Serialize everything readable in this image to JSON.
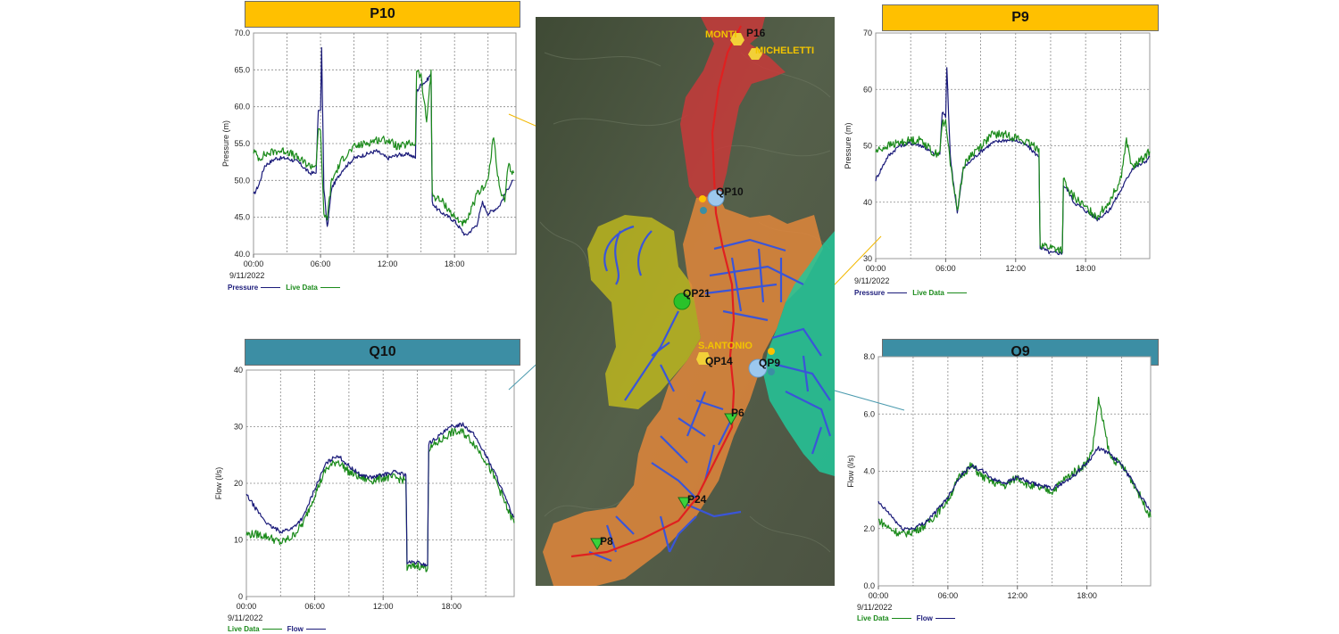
{
  "colors": {
    "pressure": "#1b1b7a",
    "flow": "#1b1b7a",
    "live": "#1a8a1a",
    "p_title_bg": "#ffc000",
    "q_title_bg": "#3c8ea4",
    "callout_p": "#f2b800",
    "callout_q": "#4a9aae"
  },
  "chart_data": [
    {
      "id": "p10",
      "type": "line",
      "title": "P10",
      "xlabel": "",
      "ylabel": "Pressure (m)",
      "ylim": [
        40,
        70
      ],
      "yticks": [
        "40.0",
        "45.0",
        "50.0",
        "55.0",
        "60.0",
        "65.0",
        "70.0"
      ],
      "xlim": [
        0,
        23.5
      ],
      "xticks": [
        "00:00",
        "06:00",
        "12:00",
        "18:00"
      ],
      "date": "9/11/2022",
      "grid": true,
      "series": [
        {
          "name": "Pressure",
          "color_key": "pressure",
          "x": [
            0,
            0.5,
            1,
            2,
            3,
            4,
            5,
            5.6,
            5.8,
            6,
            6.1,
            6.3,
            6.6,
            7,
            8,
            9,
            10,
            11,
            12,
            13,
            14,
            14.5,
            14.6,
            15,
            15.5,
            15.9,
            16,
            16.5,
            17,
            18,
            19,
            20,
            20.5,
            21,
            22,
            22.8,
            23.3
          ],
          "y": [
            48,
            49.5,
            52,
            53,
            53,
            52.5,
            51,
            51,
            59.5,
            59.5,
            68,
            49,
            43.5,
            49,
            51.5,
            53,
            53.5,
            54,
            53,
            53.5,
            53.5,
            53,
            62,
            63,
            63.5,
            64.5,
            47,
            46,
            45.5,
            44.5,
            42.5,
            44,
            47,
            45.5,
            46.5,
            49,
            50
          ]
        },
        {
          "name": "Live Data",
          "color_key": "live",
          "x": [
            0,
            0.5,
            1,
            2,
            3,
            4,
            5,
            5.6,
            5.8,
            6,
            6.3,
            6.6,
            7,
            8,
            9,
            10,
            11,
            12,
            13,
            14,
            14.5,
            14.6,
            15,
            15.5,
            15.9,
            16,
            16.5,
            17,
            18,
            19,
            20,
            20.5,
            21,
            21.5,
            22,
            22.5,
            22.8,
            23.3
          ],
          "y": [
            54,
            53,
            53.5,
            54,
            54,
            53,
            52,
            52,
            57,
            57,
            45,
            45,
            50,
            53,
            54.5,
            55,
            55.5,
            55.5,
            54.5,
            55,
            55,
            65,
            64,
            58,
            65,
            48,
            47.5,
            47,
            45,
            44,
            48,
            49,
            50,
            56,
            49,
            47,
            52,
            51
          ]
        }
      ]
    },
    {
      "id": "p9",
      "type": "line",
      "title": "P9",
      "xlabel": "",
      "ylabel": "Pressure (m)",
      "ylim": [
        30,
        70
      ],
      "yticks": [
        "30",
        "40",
        "50",
        "60",
        "70"
      ],
      "xlim": [
        0,
        23.5
      ],
      "xticks": [
        "00:00",
        "06:00",
        "12:00",
        "18:00"
      ],
      "date": "9/11/2022",
      "grid": true,
      "series": [
        {
          "name": "Pressure",
          "color_key": "pressure",
          "x": [
            0,
            1,
            2,
            3,
            4,
            5,
            5.5,
            5.7,
            6,
            6.1,
            6.4,
            7,
            7.5,
            8,
            9,
            10,
            11,
            12,
            13,
            14,
            14.1,
            15,
            16,
            16.1,
            16.5,
            17,
            18,
            19,
            20,
            21,
            22,
            23,
            23.5
          ],
          "y": [
            44,
            48,
            50,
            50.5,
            50,
            48.5,
            48.5,
            56,
            55,
            64,
            48,
            38,
            46,
            47,
            49,
            50.5,
            51,
            51,
            50,
            48,
            32,
            31,
            31,
            43,
            42,
            40,
            38.5,
            37,
            38.5,
            42,
            46,
            47,
            48
          ]
        },
        {
          "name": "Live Data",
          "color_key": "live",
          "x": [
            0,
            1,
            2,
            3,
            4,
            5,
            5.5,
            5.7,
            6,
            6.4,
            7,
            7.5,
            8,
            9,
            10,
            11,
            12,
            13,
            14,
            14.1,
            15,
            16,
            16.1,
            16.5,
            17,
            18,
            19,
            20,
            21,
            21.5,
            22,
            23,
            23.5
          ],
          "y": [
            49,
            50,
            50.5,
            51,
            51,
            48.5,
            49,
            54,
            54,
            47,
            38.5,
            46,
            48,
            50,
            52,
            52,
            51.5,
            50.5,
            49.5,
            32.5,
            32,
            31.5,
            44,
            42,
            41,
            39,
            37.5,
            40,
            44,
            51,
            46,
            48,
            49
          ]
        }
      ]
    },
    {
      "id": "q10",
      "type": "line",
      "title": "Q10",
      "xlabel": "",
      "ylabel": "Flow (l/s)",
      "ylim": [
        0,
        40
      ],
      "yticks": [
        "0",
        "10",
        "20",
        "30",
        "40"
      ],
      "xlim": [
        0,
        23.5
      ],
      "xticks": [
        "00:00",
        "06:00",
        "12:00",
        "18:00"
      ],
      "date": "9/11/2022",
      "grid": true,
      "series": [
        {
          "name": "Live Data",
          "color_key": "live",
          "x": [
            0,
            1,
            2,
            3,
            4,
            5,
            6,
            7,
            8,
            9,
            10,
            11,
            12,
            13,
            14,
            14.1,
            15,
            15.9,
            16,
            17,
            18,
            19,
            20,
            21,
            22,
            23,
            23.5
          ],
          "y": [
            11,
            11,
            10.5,
            9.5,
            10.5,
            13,
            18,
            22.5,
            24,
            22,
            21,
            20.5,
            21,
            21,
            20.5,
            5,
            5.5,
            5,
            26,
            27.5,
            29,
            29,
            27,
            24,
            20,
            15,
            13
          ]
        },
        {
          "name": "Flow",
          "color_key": "flow",
          "x": [
            0,
            1,
            2,
            3,
            4,
            5,
            6,
            7,
            8,
            9,
            10,
            11,
            12,
            13,
            14,
            14.1,
            15,
            15.9,
            16,
            17,
            18,
            19,
            20,
            21,
            22,
            23,
            23.5
          ],
          "y": [
            18,
            15,
            12.5,
            11.5,
            12,
            14,
            19,
            23.5,
            25,
            23,
            21.5,
            21,
            21.5,
            22,
            21.5,
            6,
            6,
            5.5,
            27,
            28.5,
            30,
            30.5,
            28.5,
            25,
            21,
            16,
            14
          ]
        }
      ]
    },
    {
      "id": "q9",
      "type": "line",
      "title": "Q9",
      "xlabel": "",
      "ylabel": "Flow (l/s)",
      "ylim": [
        0,
        8
      ],
      "yticks": [
        "0.0",
        "2.0",
        "4.0",
        "6.0",
        "8.0"
      ],
      "xlim": [
        0,
        23.5
      ],
      "xticks": [
        "00:00",
        "06:00",
        "12:00",
        "18:00"
      ],
      "date": "9/11/2022",
      "grid": true,
      "series": [
        {
          "name": "Live Data",
          "color_key": "live",
          "x": [
            0,
            1,
            2,
            3,
            4,
            5,
            6,
            7,
            8,
            9,
            10,
            11,
            12,
            13,
            14,
            15,
            16,
            17,
            18,
            18.5,
            19,
            20,
            21,
            22,
            23,
            23.5
          ],
          "y": [
            2.3,
            2.0,
            1.8,
            1.9,
            2.1,
            2.5,
            3.0,
            3.8,
            4.2,
            3.8,
            3.6,
            3.5,
            3.8,
            3.5,
            3.4,
            3.3,
            3.7,
            4.0,
            4.3,
            4.8,
            6.5,
            4.5,
            4.2,
            3.6,
            2.8,
            2.4
          ]
        },
        {
          "name": "Flow",
          "color_key": "flow",
          "x": [
            0,
            1,
            2,
            3,
            4,
            5,
            6,
            7,
            8,
            9,
            10,
            11,
            12,
            13,
            14,
            15,
            16,
            17,
            18,
            19,
            20,
            21,
            22,
            23,
            23.5
          ],
          "y": [
            2.9,
            2.5,
            2.0,
            2.0,
            2.2,
            2.6,
            3.1,
            3.8,
            4.2,
            4.0,
            3.7,
            3.6,
            3.8,
            3.6,
            3.5,
            3.4,
            3.6,
            3.9,
            4.3,
            4.8,
            4.6,
            4.2,
            3.6,
            2.9,
            2.6
          ]
        }
      ]
    }
  ],
  "map": {
    "stations": [
      {
        "id": "monti",
        "label": "MONTI",
        "kind": "tank"
      },
      {
        "id": "p16",
        "label": "P16",
        "kind": "pressure"
      },
      {
        "id": "micheletti",
        "label": "MICHELETTI",
        "kind": "tank"
      },
      {
        "id": "qp10",
        "label": "QP10",
        "kind": "flow-pressure"
      },
      {
        "id": "qp21",
        "label": "QP21",
        "kind": "flow-pressure"
      },
      {
        "id": "s_antonio",
        "label": "S.ANTONIO",
        "kind": "tank"
      },
      {
        "id": "qp14",
        "label": "QP14",
        "kind": "flow-pressure"
      },
      {
        "id": "qp9",
        "label": "QP9",
        "kind": "flow-pressure"
      },
      {
        "id": "p6",
        "label": "P6",
        "kind": "pressure"
      },
      {
        "id": "p24",
        "label": "P24",
        "kind": "pressure"
      },
      {
        "id": "p8",
        "label": "P8",
        "kind": "pressure"
      }
    ]
  }
}
